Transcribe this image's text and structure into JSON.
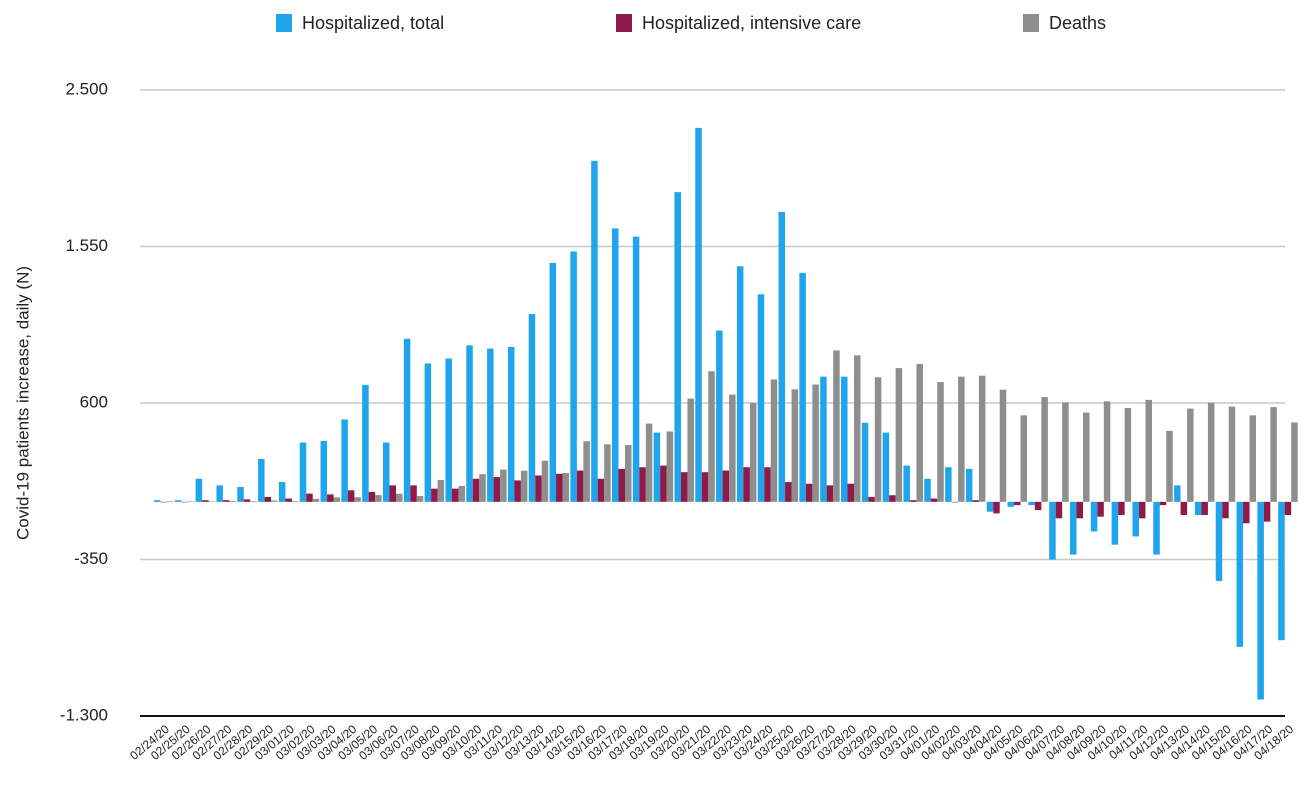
{
  "chart_data": {
    "type": "bar",
    "y_label": "Covid-19 patients increase, daily (N)",
    "categories": [
      "02/24/20",
      "02/25/20",
      "02/26/20",
      "02/27/20",
      "02/28/20",
      "02/29/20",
      "03/01/20",
      "03/02/20",
      "03/03/20",
      "03/04/20",
      "03/05/20",
      "03/06/20",
      "03/07/20",
      "03/08/20",
      "03/09/20",
      "03/10/20",
      "03/11/20",
      "03/12/20",
      "03/13/20",
      "03/14/20",
      "03/15/20",
      "03/16/20",
      "03/17/20",
      "03/18/20",
      "03/19/20",
      "03/20/20",
      "03/21/20",
      "03/22/20",
      "03/23/20",
      "03/24/20",
      "03/25/20",
      "03/26/20",
      "03/27/20",
      "03/28/20",
      "03/29/20",
      "03/30/20",
      "03/31/20",
      "04/01/20",
      "04/02/20",
      "04/03/20",
      "04/04/20",
      "04/05/20",
      "04/06/20",
      "04/07/20",
      "04/08/20",
      "04/09/20",
      "04/10/20",
      "04/11/20",
      "04/12/20",
      "04/13/20",
      "04/14/20",
      "04/15/20",
      "04/16/20",
      "04/17/20",
      "04/18/20"
    ],
    "series": [
      {
        "name": "Hospitalized, total",
        "color": "#1ea5ec",
        "values": [
          10,
          10,
          140,
          100,
          90,
          260,
          120,
          360,
          370,
          500,
          710,
          360,
          990,
          840,
          870,
          950,
          930,
          940,
          1140,
          1450,
          1520,
          2070,
          1660,
          1610,
          420,
          1880,
          2270,
          1040,
          1430,
          1260,
          1760,
          1390,
          760,
          760,
          480,
          420,
          220,
          140,
          210,
          200,
          -60,
          -30,
          -20,
          -350,
          -320,
          -180,
          -260,
          -210,
          -320,
          100,
          -80,
          -480,
          -880,
          -1200,
          -840
        ]
      },
      {
        "name": "Hospitalized, intensive care",
        "color": "#8f1a4a",
        "values": [
          0,
          0,
          10,
          10,
          15,
          30,
          20,
          50,
          45,
          70,
          60,
          100,
          100,
          80,
          80,
          140,
          150,
          130,
          160,
          170,
          190,
          140,
          200,
          210,
          220,
          180,
          180,
          190,
          210,
          210,
          120,
          110,
          100,
          110,
          30,
          40,
          10,
          20,
          0,
          10,
          -70,
          -20,
          -50,
          -100,
          -100,
          -90,
          -80,
          -100,
          -20,
          -80,
          -80,
          -100,
          -130,
          -120,
          -80
        ]
      },
      {
        "name": "Deaths",
        "color": "#8e8e8e",
        "values": [
          4,
          3,
          2,
          5,
          4,
          8,
          5,
          18,
          27,
          28,
          41,
          49,
          36,
          133,
          97,
          168,
          196,
          189,
          250,
          175,
          368,
          349,
          345,
          475,
          427,
          627,
          793,
          651,
          601,
          743,
          683,
          712,
          919,
          889,
          756,
          812,
          837,
          727,
          760,
          766,
          681,
          525,
          636,
          604,
          542,
          610,
          570,
          619,
          431,
          566,
          602,
          578,
          525,
          575,
          482
        ]
      }
    ],
    "ylim": [
      -1300,
      2500
    ],
    "yticks": [
      {
        "value": -1300,
        "label": "-1.300"
      },
      -350,
      600,
      {
        "value": 1550,
        "label": "1.550"
      },
      {
        "value": 2500,
        "label": "2.500"
      }
    ],
    "grid": true,
    "legend": "top"
  }
}
